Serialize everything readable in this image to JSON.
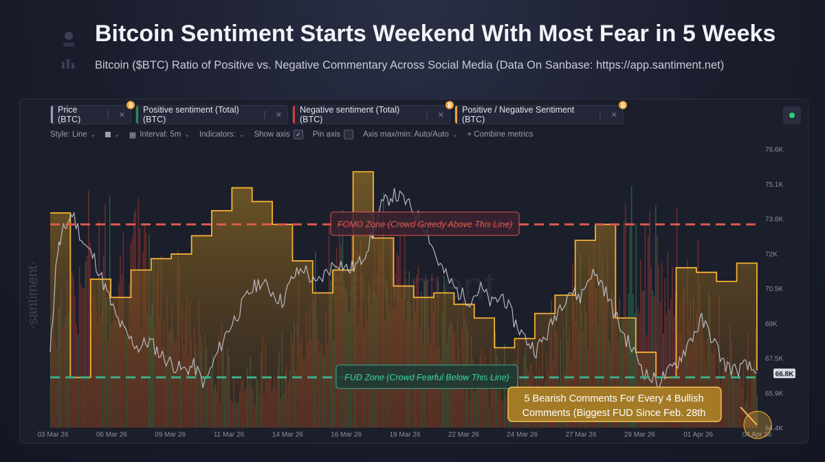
{
  "header": {
    "title": "Bitcoin Sentiment Starts Weekend With Most Fear in 5 Weeks",
    "subtitle": "Bitcoin ($BTC) Ratio of Positive vs. Negative Commentary Across Social Media (Data On Sanbase: https://app.santiment.net)"
  },
  "tabs": [
    {
      "label": "Price (BTC)",
      "color": "#9aa0b3"
    },
    {
      "label": "Positive sentiment (Total) (BTC)",
      "color": "#2e8b57"
    },
    {
      "label": "Negative sentiment (Total) (BTC)",
      "color": "#d9383a"
    },
    {
      "label": "Positive / Negative Sentiment (BTC)",
      "color": "#f2a33a"
    }
  ],
  "toolbar": {
    "style": "Style: Line",
    "interval": "Interval: 5m",
    "indicators": "Indicators:",
    "show_axis": "Show axis",
    "pin_axis": "Pin axis",
    "axis_maxmin": "Axis max/min: Auto/Auto",
    "combine": "+ Combine metrics"
  },
  "watermark": "santiment",
  "side_logo": "·santiment·",
  "annotations": {
    "fomo": "FOMO Zone (Crowd Greedy Above This Line)",
    "fud": "FUD Zone (Crowd Fearful Below This Line)",
    "callout_line1": "5 Bearish Comments For Every 4 Bullish",
    "callout_line2": "Comments (Biggest FUD Since Feb. 28th"
  },
  "colors": {
    "price": "#c8cad4",
    "ratio": "#f5b335",
    "ratio_fill": "#7a5a1e",
    "positive": "#2e8b57",
    "negative": "#c8412e",
    "fomo": "#e05a4e",
    "fud": "#3fae8c",
    "callout_bg": "#b8892a"
  },
  "chart_data": {
    "type": "line",
    "x_ticks": [
      "03 Mar 26",
      "06 Mar 26",
      "09 Mar 26",
      "11 Mar 26",
      "14 Mar 26",
      "16 Mar 26",
      "19 Mar 26",
      "22 Mar 26",
      "24 Mar 26",
      "27 Mar 26",
      "29 Mar 26",
      "01 Apr 26",
      "04 Apr 26"
    ],
    "y_ticks": [
      "76.6K",
      "75.1K",
      "73.6K",
      "72K",
      "70.5K",
      "69K",
      "67.5K",
      "65.9K",
      "64.4K"
    ],
    "ylim": [
      64400,
      76600
    ],
    "current_price_label": "66.8K",
    "xlim": [
      0,
      32
    ],
    "price_series": {
      "name": "Price (BTC)",
      "points": [
        [
          0,
          67600
        ],
        [
          0.3,
          72000
        ],
        [
          0.6,
          73000
        ],
        [
          1,
          73800
        ],
        [
          1.5,
          72500
        ],
        [
          2,
          71800
        ],
        [
          2.5,
          70500
        ],
        [
          3,
          69200
        ],
        [
          3.5,
          68400
        ],
        [
          4,
          67900
        ],
        [
          4.5,
          68200
        ],
        [
          5,
          67600
        ],
        [
          5.5,
          67200
        ],
        [
          6,
          66900
        ],
        [
          6.5,
          67100
        ],
        [
          7,
          66300
        ],
        [
          7.5,
          67500
        ],
        [
          8,
          68600
        ],
        [
          8.5,
          69400
        ],
        [
          9,
          70300
        ],
        [
          9.5,
          70800
        ],
        [
          10,
          70400
        ],
        [
          10.5,
          69900
        ],
        [
          11,
          71000
        ],
        [
          11.5,
          71400
        ],
        [
          12,
          70600
        ],
        [
          12.5,
          71200
        ],
        [
          13,
          71700
        ],
        [
          13.5,
          71300
        ],
        [
          14,
          71600
        ],
        [
          14.5,
          72600
        ],
        [
          15,
          74100
        ],
        [
          15.5,
          74600
        ],
        [
          16,
          74400
        ],
        [
          16.5,
          73800
        ],
        [
          17,
          73200
        ],
        [
          17.5,
          71800
        ],
        [
          18,
          70900
        ],
        [
          18.5,
          70300
        ],
        [
          19,
          70000
        ],
        [
          19.5,
          70500
        ],
        [
          20,
          69800
        ],
        [
          20.5,
          70200
        ],
        [
          21,
          69100
        ],
        [
          21.5,
          68300
        ],
        [
          22,
          67800
        ],
        [
          22.5,
          68500
        ],
        [
          23,
          69600
        ],
        [
          23.5,
          70400
        ],
        [
          24,
          70100
        ],
        [
          24.5,
          71200
        ],
        [
          25,
          70700
        ],
        [
          25.5,
          69500
        ],
        [
          26,
          68400
        ],
        [
          26.5,
          67600
        ],
        [
          27,
          66700
        ],
        [
          27.5,
          66400
        ],
        [
          28,
          66800
        ],
        [
          28.5,
          67400
        ],
        [
          29,
          68300
        ],
        [
          29.5,
          69100
        ],
        [
          30,
          68300
        ],
        [
          30.5,
          67200
        ],
        [
          31,
          66900
        ],
        [
          31.5,
          67100
        ],
        [
          32,
          66800
        ]
      ]
    },
    "ratio_series": {
      "name": "Positive / Negative Sentiment (BTC)",
      "steps": [
        [
          0,
          73800
        ],
        [
          1.7,
          66600
        ],
        [
          2.6,
          70900
        ],
        [
          3.7,
          70100
        ],
        [
          4.6,
          71300
        ],
        [
          5.7,
          71800
        ],
        [
          6.8,
          72000
        ],
        [
          7.7,
          72800
        ],
        [
          8.6,
          73900
        ],
        [
          9.6,
          74900
        ],
        [
          10.5,
          74300
        ],
        [
          11.3,
          73300
        ],
        [
          12.3,
          71700
        ],
        [
          13.2,
          70300
        ],
        [
          14,
          71300
        ],
        [
          15,
          75600
        ],
        [
          15.9,
          72700
        ],
        [
          17.2,
          70600
        ],
        [
          18.2,
          70100
        ],
        [
          19.2,
          70300
        ],
        [
          20,
          69800
        ],
        [
          21.5,
          69200
        ],
        [
          22.9,
          67900
        ],
        [
          23.3,
          68300
        ],
        [
          23.8,
          69400
        ],
        [
          24.8,
          70200
        ],
        [
          25.6,
          72600
        ],
        [
          26.3,
          73300
        ],
        [
          27,
          69200
        ],
        [
          28.5,
          67700
        ],
        [
          29.9,
          66600
        ],
        [
          30.9,
          71400
        ],
        [
          31.8,
          71200
        ],
        [
          32.7,
          70800
        ],
        [
          33.8,
          71600
        ],
        [
          34.8,
          66900
        ]
      ]
    },
    "positive_sentiment": {
      "name": "Positive sentiment (Total) (BTC)"
    },
    "negative_sentiment": {
      "name": "Negative sentiment (Total) (BTC)"
    },
    "fomo_level": 73300,
    "fud_level": 66600
  }
}
